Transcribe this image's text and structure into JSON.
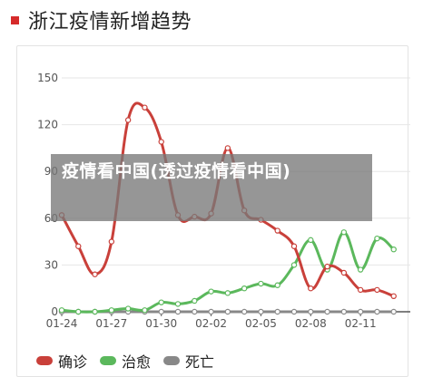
{
  "header": {
    "title": "浙江疫情新增趋势",
    "marker_color": "#d62b2b"
  },
  "overlay": {
    "text": "疫情看中国(透过疫情看中国)"
  },
  "chart_data": {
    "type": "line",
    "title": "",
    "xlabel": "",
    "ylabel": "",
    "ylim": [
      0,
      150
    ],
    "yticks": [
      0,
      30,
      60,
      90,
      120,
      150
    ],
    "x": [
      "01-24",
      "01-25",
      "01-26",
      "01-27",
      "01-28",
      "01-29",
      "01-30",
      "01-31",
      "02-01",
      "02-02",
      "02-03",
      "02-04",
      "02-05",
      "02-06",
      "02-07",
      "02-08",
      "02-09",
      "02-10",
      "02-11",
      "02-12",
      "02-13",
      "02-14"
    ],
    "xtick_labels": [
      "01-24",
      "01-27",
      "01-30",
      "02-02",
      "02-05",
      "02-08",
      "02-11"
    ],
    "grid": true,
    "legend_position": "bottom",
    "series": [
      {
        "name": "确诊",
        "color": "#c9403a",
        "values": [
          62,
          42,
          24,
          45,
          123,
          131,
          109,
          62,
          61,
          63,
          105,
          65,
          59,
          52,
          42,
          15,
          29,
          25,
          14,
          14,
          10,
          null
        ]
      },
      {
        "name": "治愈",
        "color": "#5bb85c",
        "values": [
          1,
          0,
          0,
          1,
          2,
          1,
          6,
          5,
          7,
          13,
          12,
          15,
          18,
          17,
          30,
          46,
          27,
          51,
          27,
          47,
          40,
          null
        ]
      },
      {
        "name": "死亡",
        "color": "#888888",
        "values": [
          0,
          0,
          0,
          0,
          0,
          0,
          0,
          0,
          0,
          0,
          0,
          0,
          0,
          0,
          0,
          0,
          0,
          0,
          0,
          0,
          0,
          null
        ]
      }
    ]
  }
}
